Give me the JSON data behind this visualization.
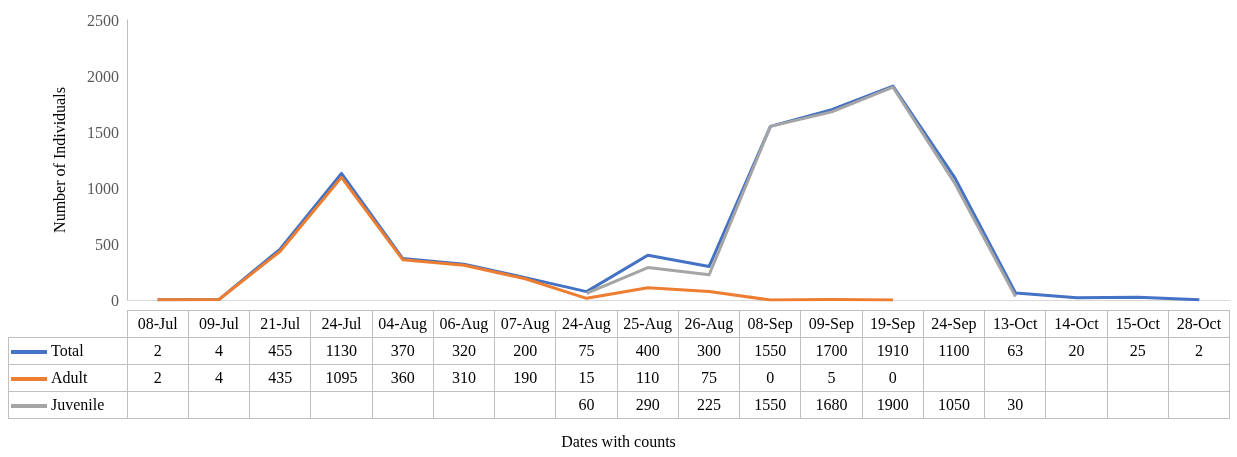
{
  "chart_data": {
    "type": "line",
    "annotations": [
      "Dates with counts"
    ],
    "ylabel": "Number of Individuals",
    "categories": [
      "08-Jul",
      "09-Jul",
      "21-Jul",
      "24-Jul",
      "04-Aug",
      "06-Aug",
      "07-Aug",
      "24-Aug",
      "25-Aug",
      "26-Aug",
      "08-Sep",
      "09-Sep",
      "19-Sep",
      "24-Sep",
      "13-Oct",
      "14-Oct",
      "15-Oct",
      "28-Oct"
    ],
    "series": [
      {
        "name": "Total",
        "color": "#4472c4",
        "values": [
          2,
          4,
          455,
          1130,
          370,
          320,
          200,
          75,
          400,
          300,
          1550,
          1700,
          1910,
          1100,
          63,
          20,
          25,
          2
        ]
      },
      {
        "name": "Adult",
        "color": "#ed7d31",
        "values": [
          2,
          4,
          435,
          1095,
          360,
          310,
          190,
          15,
          110,
          75,
          0,
          5,
          0,
          null,
          null,
          null,
          null,
          null
        ]
      },
      {
        "name": "Juvenile",
        "color": "#a5a5a5",
        "values": [
          null,
          null,
          null,
          null,
          null,
          null,
          null,
          60,
          290,
          225,
          1550,
          1680,
          1900,
          1050,
          30,
          null,
          null,
          null
        ]
      }
    ],
    "ylim": [
      0,
      2500
    ],
    "yticks": [
      0,
      500,
      1000,
      1500,
      2000,
      2500
    ],
    "grid": false,
    "legend": "bottom",
    "data_labels": true
  }
}
